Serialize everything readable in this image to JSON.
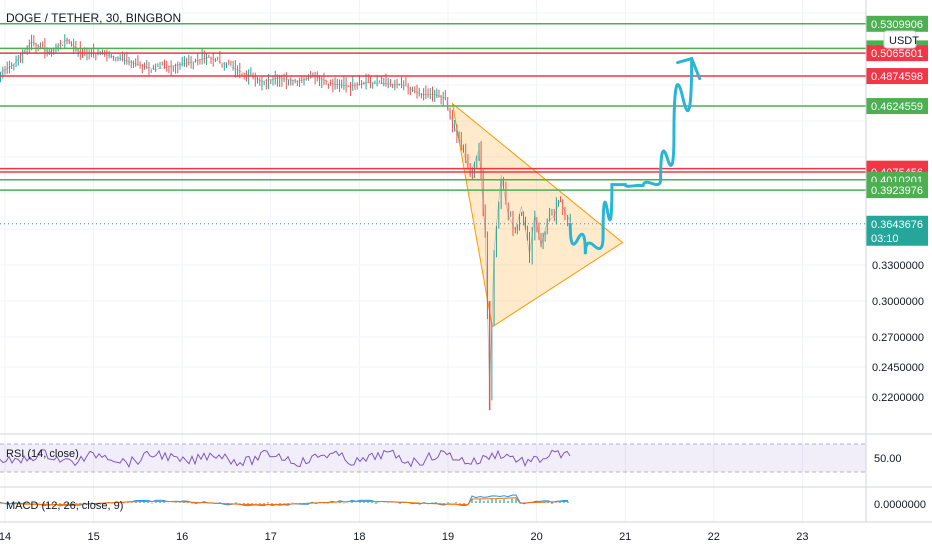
{
  "chart_data": {
    "type": "candlestick",
    "title": "DOGE / TETHER, 30, BINGBON",
    "currency_label": "USDT",
    "x_axis": {
      "ticks": [
        "14",
        "15",
        "16",
        "17",
        "18",
        "19",
        "20",
        "21",
        "22",
        "23"
      ],
      "range_days": [
        13.85,
        23.65
      ]
    },
    "y_axis": {
      "range": [
        0.2,
        0.575
      ],
      "ticks": [
        "0.3300000",
        "0.3000000",
        "0.2700000",
        "0.2450000",
        "0.2200000"
      ],
      "ticks_values": [
        0.33,
        0.3,
        0.27,
        0.245,
        0.22
      ]
    },
    "current_price": {
      "label": "0.3643676",
      "value": 0.3643676,
      "countdown": "03:10"
    },
    "levels": [
      {
        "label": "0.5309906",
        "value": 0.5309906,
        "color": "#4caf50"
      },
      {
        "label": "0.5105059",
        "value": 0.5105059,
        "color": "#4caf50"
      },
      {
        "label": "0.5065601",
        "value": 0.5065601,
        "color": "#f23645"
      },
      {
        "label": "0.4874598",
        "value": 0.4874598,
        "color": "#f23645"
      },
      {
        "label": "0.4624559",
        "value": 0.4624559,
        "color": "#4caf50"
      },
      {
        "label": "0.4102755",
        "value": 0.4102755,
        "color": "#f23645"
      },
      {
        "label": "0.4075456",
        "value": 0.4075456,
        "color": "#f23645"
      },
      {
        "label": "0.4010201",
        "value": 0.4010201,
        "color": "#4caf50"
      },
      {
        "label": "0.3923976",
        "value": 0.3923976,
        "color": "#4caf50"
      }
    ],
    "price_series": {
      "points": [
        [
          13.85,
          0.486
        ],
        [
          14.1,
          0.497
        ],
        [
          14.3,
          0.516
        ],
        [
          14.5,
          0.507
        ],
        [
          14.7,
          0.518
        ],
        [
          14.85,
          0.507
        ],
        [
          15.1,
          0.506
        ],
        [
          15.3,
          0.502
        ],
        [
          15.5,
          0.497
        ],
        [
          15.7,
          0.493
        ],
        [
          15.9,
          0.496
        ],
        [
          16.1,
          0.499
        ],
        [
          16.3,
          0.503
        ],
        [
          16.5,
          0.497
        ],
        [
          16.7,
          0.49
        ],
        [
          16.9,
          0.483
        ],
        [
          17.1,
          0.486
        ],
        [
          17.3,
          0.483
        ],
        [
          17.5,
          0.487
        ],
        [
          17.7,
          0.481
        ],
        [
          17.9,
          0.479
        ],
        [
          18.1,
          0.482
        ],
        [
          18.3,
          0.481
        ],
        [
          18.5,
          0.48
        ],
        [
          18.7,
          0.472
        ],
        [
          18.85,
          0.472
        ],
        [
          18.97,
          0.469
        ],
        [
          19.05,
          0.449
        ],
        [
          19.15,
          0.431
        ],
        [
          19.25,
          0.405
        ],
        [
          19.35,
          0.426
        ],
        [
          19.42,
          0.357
        ],
        [
          19.47,
          0.225
        ],
        [
          19.52,
          0.342
        ],
        [
          19.6,
          0.405
        ],
        [
          19.68,
          0.371
        ],
        [
          19.76,
          0.359
        ],
        [
          19.83,
          0.379
        ],
        [
          19.92,
          0.339
        ],
        [
          19.98,
          0.372
        ],
        [
          20.05,
          0.346
        ],
        [
          20.12,
          0.366
        ],
        [
          20.2,
          0.371
        ],
        [
          20.27,
          0.385
        ],
        [
          20.32,
          0.374
        ],
        [
          20.38,
          0.367
        ]
      ],
      "wick_low": {
        "day": 19.47,
        "value": 0.209
      }
    },
    "triangle_pattern": {
      "vertices": [
        [
          19.05,
          0.4645
        ],
        [
          19.5,
          0.2785
        ],
        [
          20.97,
          0.3488
        ]
      ]
    },
    "projection_path": {
      "points": [
        [
          20.38,
          0.364
        ],
        [
          20.55,
          0.339
        ],
        [
          20.75,
          0.353
        ],
        [
          20.85,
          0.397
        ],
        [
          21.0,
          0.397
        ],
        [
          21.2,
          0.395
        ],
        [
          21.4,
          0.401
        ],
        [
          21.55,
          0.437
        ],
        [
          21.75,
          0.502
        ]
      ],
      "color": "#29b6d6"
    },
    "indicators": [
      {
        "name": "RSI (14, close)",
        "value_label": "50.00",
        "band": [
          30,
          70
        ]
      },
      {
        "name": "MACD (12, 26, close, 9)",
        "value_label": "0.0000000"
      }
    ],
    "grid": true
  }
}
